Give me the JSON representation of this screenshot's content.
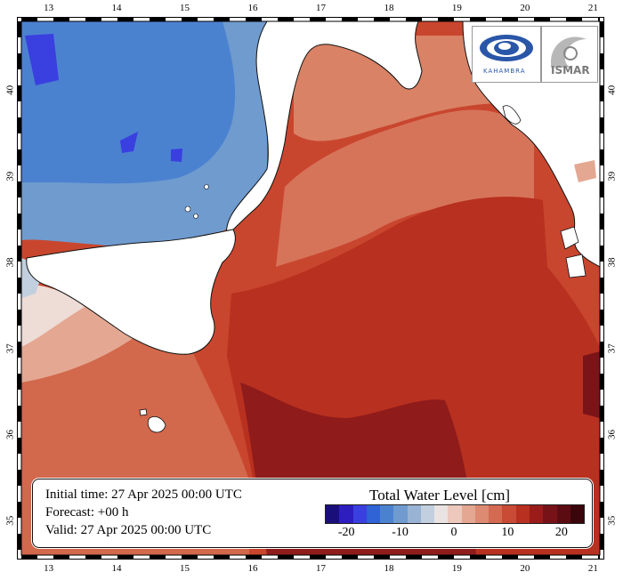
{
  "map": {
    "lon_ticks": [
      "13",
      "14",
      "15",
      "16",
      "17",
      "18",
      "19",
      "20",
      "21"
    ],
    "lat_ticks": [
      "35",
      "36",
      "37",
      "38",
      "39",
      "40"
    ],
    "lon_range": [
      12.6,
      21.1
    ],
    "lat_range": [
      34.6,
      40.8
    ]
  },
  "info": {
    "initial_time": "Initial time: 27 Apr 2025 00:00 UTC",
    "forecast": "Forecast: +00 h",
    "valid": "Valid: 27 Apr 2025 00:00 UTC"
  },
  "colorbar": {
    "title": "Total Water Level [cm]",
    "tick_labels": [
      "-20",
      "-10",
      "0",
      "10",
      "20"
    ],
    "tick_values": [
      -20,
      -10,
      0,
      10,
      20
    ],
    "range": [
      -24,
      24
    ],
    "colors": [
      "#1a0f7a",
      "#2e1dbf",
      "#3a3fe0",
      "#2f63d6",
      "#4b82d0",
      "#6f9bcf",
      "#98b3d4",
      "#c2cfdf",
      "#e9e3e3",
      "#ecc8bd",
      "#e4a792",
      "#dc8a72",
      "#d36a51",
      "#c94b35",
      "#b8301f",
      "#9a1c1a",
      "#781219",
      "#5a0c12",
      "#3a060b"
    ]
  },
  "logos": {
    "left_text": "KAHAMBRA",
    "right_text": "ISMAR"
  }
}
